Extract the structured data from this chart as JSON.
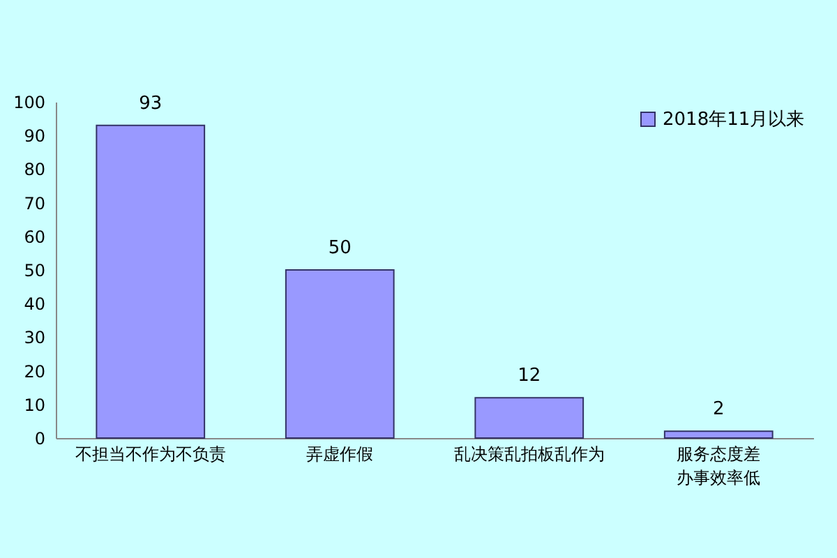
{
  "chart_data": {
    "type": "bar",
    "categories": [
      "不担当不作为不负责",
      "弄虚作假",
      "乱决策乱拍板乱作为",
      "服务态度差办事效率低"
    ],
    "series": [
      {
        "name": "2018年11月以来",
        "color": "#9999ff",
        "values": [
          93,
          50,
          12,
          2
        ]
      }
    ],
    "ylim": [
      0,
      100
    ],
    "yticks": [
      0,
      10,
      20,
      30,
      40,
      50,
      60,
      70,
      80,
      90,
      100
    ],
    "data_labels": true,
    "legend": "top right",
    "grid": false
  }
}
